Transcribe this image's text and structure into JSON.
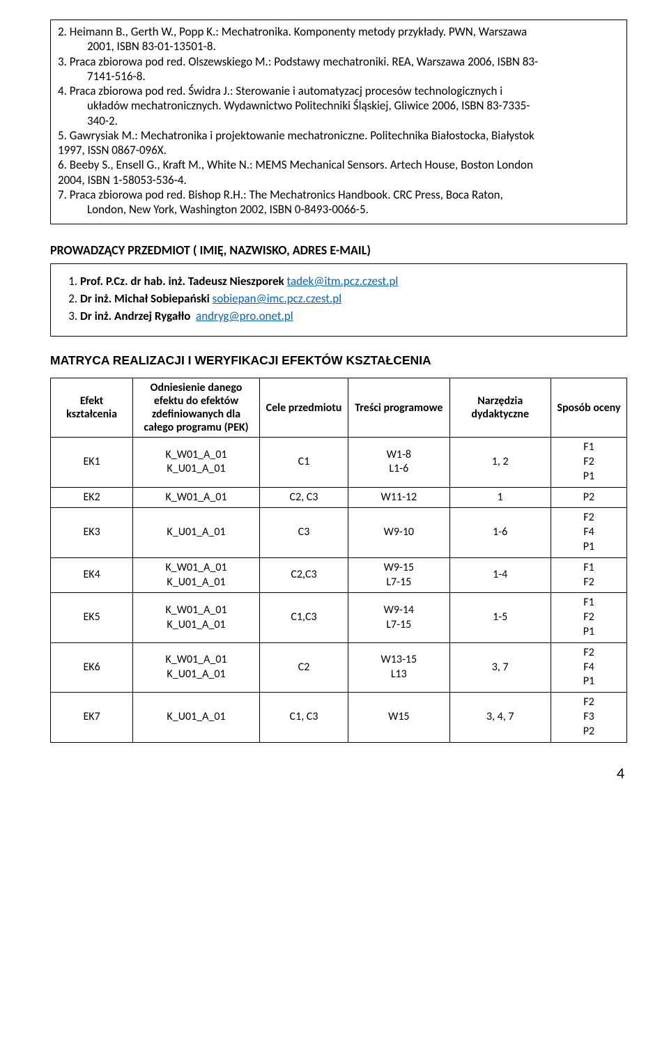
{
  "bibliography": {
    "items": [
      {
        "num": "2.",
        "line1": "Heimann B., Gerth W., Popp K.: Mechatronika. Komponenty metody przykłady. PWN, Warszawa",
        "line2": "2001, ISBN 83-01-13501-8."
      },
      {
        "num": "3.",
        "line1": "Praca zbiorowa pod red. Olszewskiego M.: Podstawy mechatroniki. REA, Warszawa 2006, ISBN 83-",
        "line2": "7141-516-8."
      },
      {
        "num": "4.",
        "line1": "Praca zbiorowa pod red. Świdra J.: Sterowanie i automatyzacj procesów technologicznych i",
        "line2": "układów mechatronicznych. Wydawnictwo Politechniki Śląskiej, Gliwice 2006, ISBN 83-7335-",
        "line3": "340-2."
      },
      {
        "num": "5.",
        "line1": "Gawrysiak M.: Mechatronika i projektowanie mechatroniczne. Politechnika Białostocka, Białystok"
      },
      {
        "contLine": "1997, ISSN 0867-096X."
      },
      {
        "num": "6.",
        "line1": "Beeby S., Ensell G., Kraft M., White N.: MEMS Mechanical Sensors. Artech House, Boston London"
      },
      {
        "contLine": "2004, ISBN 1-58053-536-4."
      },
      {
        "num": "7.",
        "line1": "Praca zbiorowa pod red. Bishop R.H.: The Mechatronics Handbook. CRC Press, Boca Raton,",
        "line2": "London, New York, Washington 2002, ISBN 0-8493-0066-5."
      }
    ]
  },
  "instructors_heading": "PROWADZĄCY PRZEDMIOT ( IMIĘ, NAZWISKO, ADRES E-MAIL)",
  "instructors": [
    {
      "num": "1.",
      "bold": "Prof. P.Cz. dr hab. inż. Tadeusz Nieszporek",
      "link_text": "tadek@itm.pcz.czest.pl"
    },
    {
      "num": "2.",
      "bold": "Dr inż. Michał Sobiepański",
      "link_text": "sobiepan@imc.pcz.czest.pl"
    },
    {
      "num": "3.",
      "bold": "Dr inż. Andrzej Rygałło",
      "link_text": "andryg@pro.onet.pl"
    }
  ],
  "matrix_heading": "MATRYCA REALIZACJI I WERYFIKACJI EFEKTÓW KSZTAŁCENIA",
  "matrix": {
    "headers": {
      "c1": "Efekt kształcenia",
      "c2": "Odniesienie danego efektu do efektów zdefiniowanych dla całego programu (PEK)",
      "c3": "Cele przedmiotu",
      "c4": "Treści programowe",
      "c5": "Narzędzia dydaktyczne",
      "c6": "Sposób oceny"
    },
    "rows": [
      {
        "ek": "EK1",
        "ref": "K_W01_A_01\nK_U01_A_01",
        "cel": "C1",
        "tre": "W1-8\nL1-6",
        "narz": "1, 2",
        "spos": "F1\nF2\nP1"
      },
      {
        "ek": "EK2",
        "ref": "K_W01_A_01",
        "cel": "C2, C3",
        "tre": "W11-12",
        "narz": "1",
        "spos": "P2"
      },
      {
        "ek": "EK3",
        "ref": "K_U01_A_01",
        "cel": "C3",
        "tre": "W9-10",
        "narz": "1-6",
        "spos": "F2\nF4\nP1"
      },
      {
        "ek": "EK4",
        "ref": "K_W01_A_01\nK_U01_A_01",
        "cel": "C2,C3",
        "tre": "W9-15\nL7-15",
        "narz": "1-4",
        "spos": "F1\nF2"
      },
      {
        "ek": "EK5",
        "ref": "K_W01_A_01\nK_U01_A_01",
        "cel": "C1,C3",
        "tre": "W9-14\nL7-15",
        "narz": "1-5",
        "spos": "F1\nF2\nP1"
      },
      {
        "ek": "EK6",
        "ref": "K_W01_A_01\nK_U01_A_01",
        "cel": "C2",
        "tre": "W13-15\nL13",
        "narz": "3, 7",
        "spos": "F2\nF4\nP1"
      },
      {
        "ek": "EK7",
        "ref": "K_U01_A_01",
        "cel": "C1, C3",
        "tre": "W15",
        "narz": "3, 4, 7",
        "spos": "F2\nF3\nP2"
      }
    ]
  },
  "page_number": "4"
}
